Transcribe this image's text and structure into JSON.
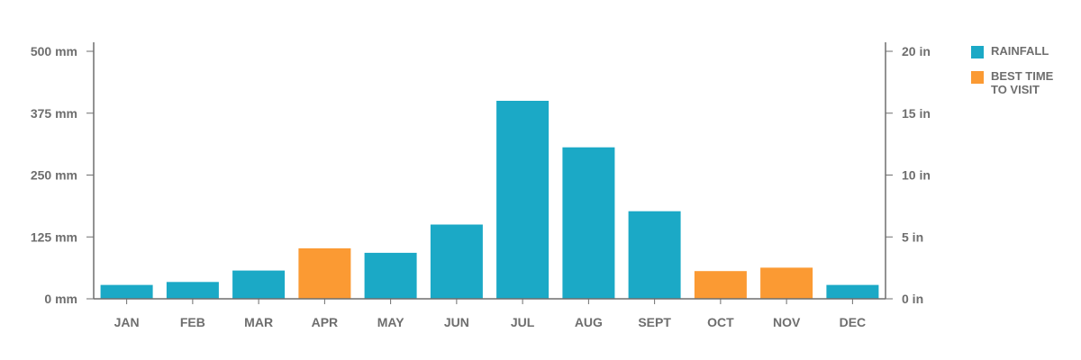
{
  "chart_data": {
    "type": "bar",
    "categories": [
      "JAN",
      "FEB",
      "MAR",
      "APR",
      "MAY",
      "JUN",
      "JUL",
      "AUG",
      "SEPT",
      "OCT",
      "NOV",
      "DEC"
    ],
    "values": [
      28,
      34,
      57,
      102,
      93,
      150,
      400,
      306,
      177,
      56,
      63,
      28
    ],
    "highlight": [
      false,
      false,
      false,
      true,
      false,
      false,
      false,
      false,
      false,
      true,
      true,
      false
    ],
    "ylim": [
      0,
      500
    ],
    "y_ticks": [
      "0 mm",
      "125 mm",
      "250 mm",
      "375 mm",
      "500 mm"
    ],
    "y2_ticks": [
      "0 in",
      "5 in",
      "10 in",
      "15 in",
      "20 in"
    ],
    "legend_placement": "right",
    "grid": false,
    "legend": [
      {
        "label": "RAINFALL",
        "color": "#1ba9c6"
      },
      {
        "label": "BEST TIME\nTO VISIT",
        "color": "#fb9a33"
      }
    ],
    "colors": {
      "rainfall": "#1ba9c6",
      "best_time": "#fb9a33",
      "axis": "#6e6e6e"
    }
  }
}
